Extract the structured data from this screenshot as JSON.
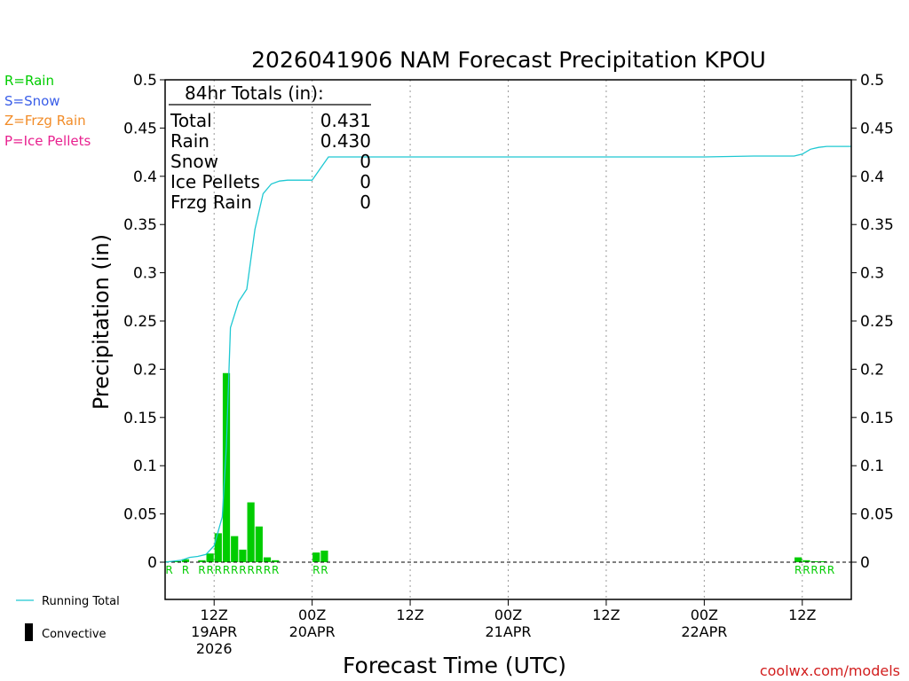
{
  "chart_data": {
    "type": "bar",
    "title": "2026041906 NAM Forecast Precipitation KPOU",
    "xlabel": "Forecast Time (UTC)",
    "ylabel": "Precipitation (in)",
    "ylim": [
      0,
      0.5
    ],
    "y_ticks": [
      0,
      0.05,
      0.1,
      0.15,
      0.2,
      0.25,
      0.3,
      0.35,
      0.4,
      0.45,
      0.5
    ],
    "y_tick_labels": [
      "0",
      "0.05",
      "0.1",
      "0.15",
      "0.2",
      "0.25",
      "0.3",
      "0.35",
      "0.4",
      "0.45",
      "0.5"
    ],
    "x_range_hours": [
      0,
      84
    ],
    "x_ticks": [
      {
        "hour": 6,
        "line1": "12Z",
        "line2": "19APR",
        "line3": "2026"
      },
      {
        "hour": 18,
        "line1": "00Z",
        "line2": "20APR",
        "line3": ""
      },
      {
        "hour": 30,
        "line1": "12Z",
        "line2": "",
        "line3": ""
      },
      {
        "hour": 42,
        "line1": "00Z",
        "line2": "21APR",
        "line3": ""
      },
      {
        "hour": 54,
        "line1": "12Z",
        "line2": "",
        "line3": ""
      },
      {
        "hour": 66,
        "line1": "00Z",
        "line2": "22APR",
        "line3": ""
      },
      {
        "hour": 78,
        "line1": "12Z",
        "line2": "",
        "line3": ""
      }
    ],
    "gridlines": "vertical dotted at tick hours",
    "hourly_precip": {
      "hours": [
        1,
        2,
        3,
        4,
        5,
        6,
        7,
        8,
        9,
        10,
        11,
        12,
        13,
        14,
        17,
        18,
        19,
        20,
        78,
        79,
        80,
        81,
        82
      ],
      "values": [
        0.001,
        0.001,
        0.003,
        0.0,
        0.002,
        0.009,
        0.03,
        0.196,
        0.027,
        0.013,
        0.062,
        0.037,
        0.005,
        0.002,
        0.0,
        0.0,
        0.01,
        0.012,
        0.005,
        0.002,
        0.001,
        0.001,
        0.0
      ],
      "ptype": [
        "R",
        "",
        "R",
        "",
        "R",
        "R",
        "R",
        "R",
        "R",
        "R",
        "R",
        "R",
        "R",
        "R",
        "",
        "",
        "R",
        "R",
        "R",
        "R",
        "R",
        "R",
        "R"
      ]
    },
    "running_total": {
      "hours": [
        0,
        1,
        2,
        3,
        4,
        5,
        6,
        7,
        7.5,
        8,
        9,
        10,
        11,
        12,
        13,
        14,
        15,
        16,
        17,
        18,
        19,
        20,
        30,
        40,
        50,
        60,
        66,
        72,
        77,
        78,
        79,
        80,
        81,
        82,
        84
      ],
      "values": [
        0,
        0.001,
        0.002,
        0.005,
        0.006,
        0.008,
        0.017,
        0.047,
        0.12,
        0.243,
        0.27,
        0.283,
        0.345,
        0.382,
        0.392,
        0.395,
        0.396,
        0.396,
        0.396,
        0.396,
        0.408,
        0.42,
        0.42,
        0.42,
        0.42,
        0.42,
        0.42,
        0.421,
        0.421,
        0.423,
        0.428,
        0.43,
        0.431,
        0.431,
        0.431
      ]
    },
    "colors": {
      "rain": "#00cc00",
      "snow": "#3a5ee8",
      "frzg_rain": "#f28c28",
      "ice_pellets": "#e8208f",
      "running_total": "#1ec8d2",
      "convective": "#000000",
      "credit": "#d21e1e"
    }
  },
  "title": "2026041906 NAM Forecast Precipitation KPOU",
  "totals": {
    "heading": "84hr Totals (in):",
    "rows": [
      {
        "label": "Total",
        "value": "0.431"
      },
      {
        "label": "Rain",
        "value": "0.430"
      },
      {
        "label": "Snow",
        "value": "0"
      },
      {
        "label": "Ice Pellets",
        "value": "0"
      },
      {
        "label": "Frzg Rain",
        "value": "0"
      }
    ]
  },
  "ptype_legend": [
    {
      "text": "R=Rain",
      "color": "#00cc00"
    },
    {
      "text": "S=Snow",
      "color": "#3a5ee8"
    },
    {
      "text": "Z=Frzg Rain",
      "color": "#f28c28"
    },
    {
      "text": "P=Ice Pellets",
      "color": "#e8208f"
    }
  ],
  "series_legend": {
    "running_total": "Running Total",
    "convective": "Convective"
  },
  "credit": "coolwx.com/models"
}
